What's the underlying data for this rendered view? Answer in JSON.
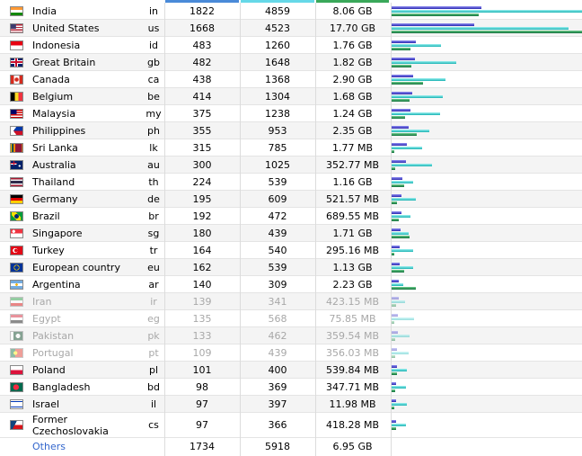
{
  "colors": {
    "hits_bar": "#4a48d8",
    "pages_bar": "#2ec8c8",
    "bandwidth_bar": "#1a8a4a",
    "header_hits": "#4a8ad8",
    "header_pages": "#66d8e8",
    "header_bandwidth": "#3aa85a",
    "others_link": "#3366cc"
  },
  "max": {
    "hits": 1822,
    "pages": 4859,
    "bandwidth_mb": 18124.8
  },
  "rows": [
    {
      "flag": "india-flag-icon",
      "name": "India",
      "code": "in",
      "hits": 1822,
      "pages": 4859,
      "bandwidth": "8.06 GB",
      "bw_mb": 8253.4,
      "faded": false
    },
    {
      "flag": "united-states-flag-icon",
      "name": "United States",
      "code": "us",
      "hits": 1668,
      "pages": 4523,
      "bandwidth": "17.70 GB",
      "bw_mb": 18124.8,
      "faded": false
    },
    {
      "flag": "indonesia-flag-icon",
      "name": "Indonesia",
      "code": "id",
      "hits": 483,
      "pages": 1260,
      "bandwidth": "1.76 GB",
      "bw_mb": 1802.2,
      "faded": false
    },
    {
      "flag": "great-britain-flag-icon",
      "name": "Great Britain",
      "code": "gb",
      "hits": 482,
      "pages": 1648,
      "bandwidth": "1.82 GB",
      "bw_mb": 1863.7,
      "faded": false
    },
    {
      "flag": "canada-flag-icon",
      "name": "Canada",
      "code": "ca",
      "hits": 438,
      "pages": 1368,
      "bandwidth": "2.90 GB",
      "bw_mb": 2969.6,
      "faded": false
    },
    {
      "flag": "belgium-flag-icon",
      "name": "Belgium",
      "code": "be",
      "hits": 414,
      "pages": 1304,
      "bandwidth": "1.68 GB",
      "bw_mb": 1720.3,
      "faded": false
    },
    {
      "flag": "malaysia-flag-icon",
      "name": "Malaysia",
      "code": "my",
      "hits": 375,
      "pages": 1238,
      "bandwidth": "1.24 GB",
      "bw_mb": 1269.8,
      "faded": false
    },
    {
      "flag": "philippines-flag-icon",
      "name": "Philippines",
      "code": "ph",
      "hits": 355,
      "pages": 953,
      "bandwidth": "2.35 GB",
      "bw_mb": 2406.4,
      "faded": false
    },
    {
      "flag": "sri-lanka-flag-icon",
      "name": "Sri Lanka",
      "code": "lk",
      "hits": 315,
      "pages": 785,
      "bandwidth": "1.77 MB",
      "bw_mb": 1.77,
      "faded": false
    },
    {
      "flag": "australia-flag-icon",
      "name": "Australia",
      "code": "au",
      "hits": 300,
      "pages": 1025,
      "bandwidth": "352.77 MB",
      "bw_mb": 352.77,
      "faded": false
    },
    {
      "flag": "thailand-flag-icon",
      "name": "Thailand",
      "code": "th",
      "hits": 224,
      "pages": 539,
      "bandwidth": "1.16 GB",
      "bw_mb": 1187.8,
      "faded": false
    },
    {
      "flag": "germany-flag-icon",
      "name": "Germany",
      "code": "de",
      "hits": 195,
      "pages": 609,
      "bandwidth": "521.57 MB",
      "bw_mb": 521.57,
      "faded": false
    },
    {
      "flag": "brazil-flag-icon",
      "name": "Brazil",
      "code": "br",
      "hits": 192,
      "pages": 472,
      "bandwidth": "689.55 MB",
      "bw_mb": 689.55,
      "faded": false
    },
    {
      "flag": "singapore-flag-icon",
      "name": "Singapore",
      "code": "sg",
      "hits": 180,
      "pages": 439,
      "bandwidth": "1.71 GB",
      "bw_mb": 1751.0,
      "faded": false
    },
    {
      "flag": "turkey-flag-icon",
      "name": "Turkey",
      "code": "tr",
      "hits": 164,
      "pages": 540,
      "bandwidth": "295.16 MB",
      "bw_mb": 295.16,
      "faded": false
    },
    {
      "flag": "european-union-flag-icon",
      "name": "European country",
      "code": "eu",
      "hits": 162,
      "pages": 539,
      "bandwidth": "1.13 GB",
      "bw_mb": 1157.1,
      "faded": false
    },
    {
      "flag": "argentina-flag-icon",
      "name": "Argentina",
      "code": "ar",
      "hits": 140,
      "pages": 309,
      "bandwidth": "2.23 GB",
      "bw_mb": 2283.5,
      "faded": false
    },
    {
      "flag": "iran-flag-icon",
      "name": "Iran",
      "code": "ir",
      "hits": 139,
      "pages": 341,
      "bandwidth": "423.15 MB",
      "bw_mb": 423.15,
      "faded": true
    },
    {
      "flag": "egypt-flag-icon",
      "name": "Egypt",
      "code": "eg",
      "hits": 135,
      "pages": 568,
      "bandwidth": "75.85 MB",
      "bw_mb": 75.85,
      "faded": true
    },
    {
      "flag": "pakistan-flag-icon",
      "name": "Pakistan",
      "code": "pk",
      "hits": 133,
      "pages": 462,
      "bandwidth": "359.54 MB",
      "bw_mb": 359.54,
      "faded": true
    },
    {
      "flag": "portugal-flag-icon",
      "name": "Portugal",
      "code": "pt",
      "hits": 109,
      "pages": 439,
      "bandwidth": "356.03 MB",
      "bw_mb": 356.03,
      "faded": true
    },
    {
      "flag": "poland-flag-icon",
      "name": "Poland",
      "code": "pl",
      "hits": 101,
      "pages": 400,
      "bandwidth": "539.84 MB",
      "bw_mb": 539.84,
      "faded": false
    },
    {
      "flag": "bangladesh-flag-icon",
      "name": "Bangladesh",
      "code": "bd",
      "hits": 98,
      "pages": 369,
      "bandwidth": "347.71 MB",
      "bw_mb": 347.71,
      "faded": false
    },
    {
      "flag": "israel-flag-icon",
      "name": "Israel",
      "code": "il",
      "hits": 97,
      "pages": 397,
      "bandwidth": "11.98 MB",
      "bw_mb": 11.98,
      "faded": false
    },
    {
      "flag": "czechoslovakia-flag-icon",
      "name": "Former Czechoslovakia",
      "code": "cs",
      "hits": 97,
      "pages": 366,
      "bandwidth": "418.28 MB",
      "bw_mb": 418.28,
      "faded": false
    }
  ],
  "others": {
    "name": "Others",
    "hits": 1734,
    "pages": 5918,
    "bandwidth": "6.95 GB"
  }
}
